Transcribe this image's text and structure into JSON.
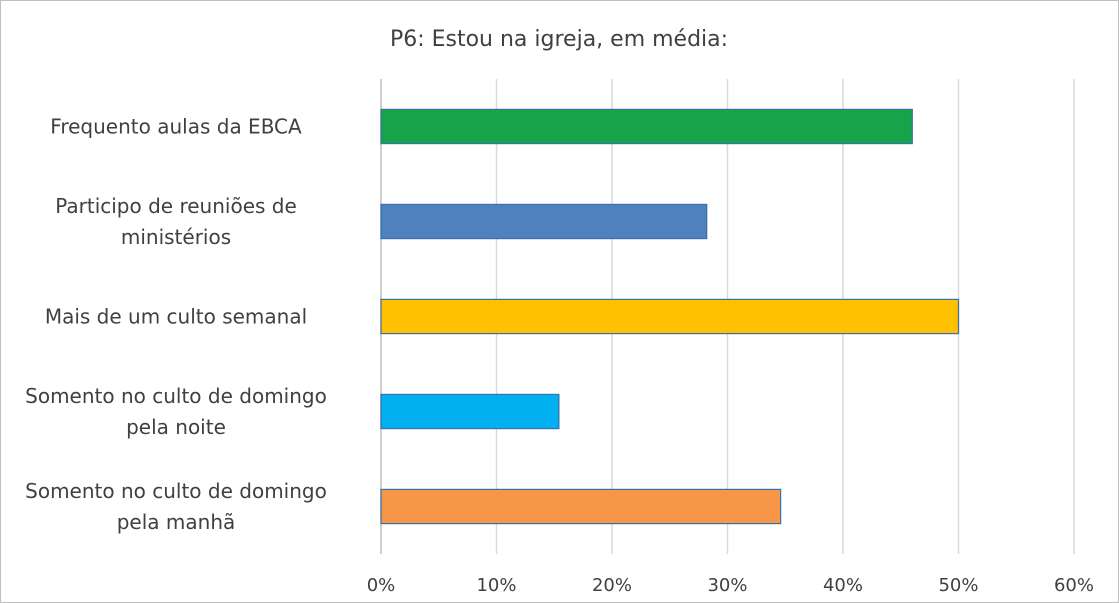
{
  "chart_data": {
    "type": "bar",
    "orientation": "horizontal",
    "title": "P6: Estou na igreja, em média:",
    "categories": [
      "Frequento aulas da EBCA",
      "Participo de reuniões de ministérios",
      "Mais de um culto semanal",
      "Somento no culto de domingo pela noite",
      "Somento no culto de domingo pela manhã"
    ],
    "category_lines": [
      [
        "Frequento aulas da EBCA"
      ],
      [
        "Participo de reuniões de",
        "ministérios"
      ],
      [
        "Mais de um culto semanal"
      ],
      [
        "Somento no culto de domingo",
        "pela noite"
      ],
      [
        "Somento no culto de domingo",
        "pela manhã"
      ]
    ],
    "values": [
      46,
      28.2,
      50,
      15.4,
      34.6
    ],
    "colors": [
      "#17a34a",
      "#4f81bd",
      "#ffc000",
      "#00b0f0",
      "#f79646"
    ],
    "xlim": [
      0,
      60
    ],
    "xticks": [
      0,
      10,
      20,
      30,
      40,
      50,
      60
    ],
    "xtick_labels": [
      "0%",
      "10%",
      "20%",
      "30%",
      "40%",
      "50%",
      "60%"
    ],
    "xlabel": "",
    "ylabel": "",
    "grid": true,
    "legend": "none"
  }
}
